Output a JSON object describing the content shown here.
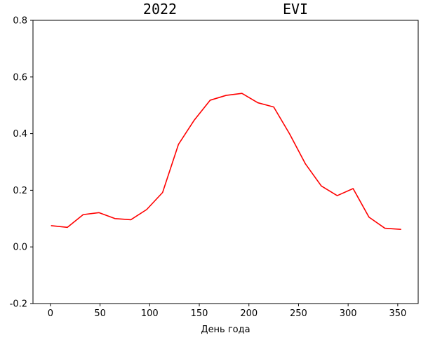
{
  "chart_data": {
    "type": "line",
    "title_left": "2022",
    "title_right": "EVI",
    "xlabel": "День года",
    "ylabel": "",
    "xlim": [
      -17.6,
      370.6
    ],
    "ylim": [
      -0.2,
      0.8
    ],
    "xticks": [
      0,
      50,
      100,
      150,
      200,
      250,
      300,
      350
    ],
    "yticks": [
      -0.2,
      0.0,
      0.2,
      0.4,
      0.6,
      0.8
    ],
    "grid": false,
    "series": [
      {
        "color": "#ff0000",
        "x": [
          1,
          17,
          33,
          49,
          65,
          81,
          97,
          113,
          129,
          145,
          161,
          177,
          193,
          209,
          225,
          241,
          257,
          273,
          289,
          305,
          321,
          337,
          353
        ],
        "y": [
          0.075,
          0.069,
          0.114,
          0.121,
          0.1,
          0.096,
          0.132,
          0.192,
          0.362,
          0.448,
          0.518,
          0.535,
          0.542,
          0.509,
          0.494,
          0.399,
          0.293,
          0.215,
          0.181,
          0.206,
          0.105,
          0.066,
          0.062
        ]
      }
    ]
  }
}
